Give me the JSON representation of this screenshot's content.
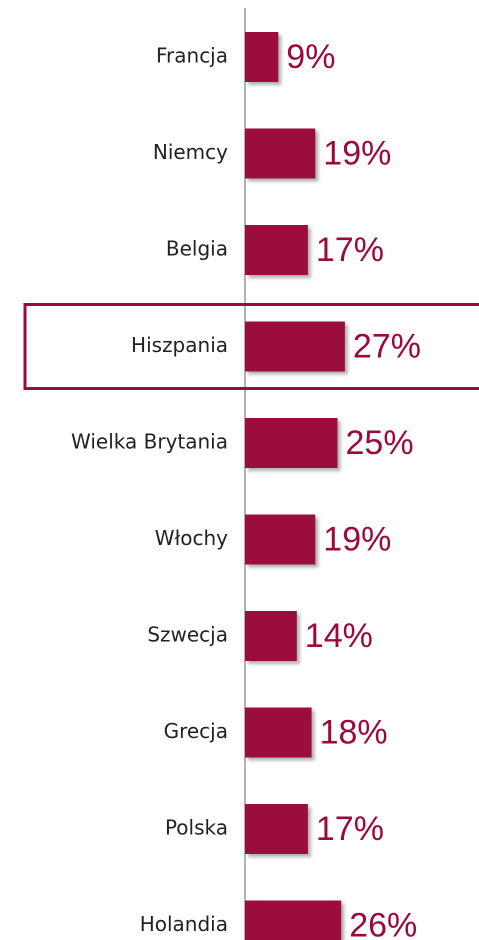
{
  "chart_data": {
    "type": "barh",
    "categories": [
      "Francja",
      "Niemcy",
      "Belgia",
      "Hiszpania",
      "Wielka Brytania",
      "Włochy",
      "Szwecja",
      "Grecja",
      "Polska",
      "Holandia"
    ],
    "values": [
      9,
      19,
      17,
      27,
      25,
      19,
      14,
      18,
      17,
      26
    ],
    "value_labels": [
      "9%",
      "19%",
      "17%",
      "27%",
      "25%",
      "19%",
      "14%",
      "18%",
      "17%",
      "26%"
    ],
    "color": "#9b0a3c",
    "highlight": 3
  }
}
